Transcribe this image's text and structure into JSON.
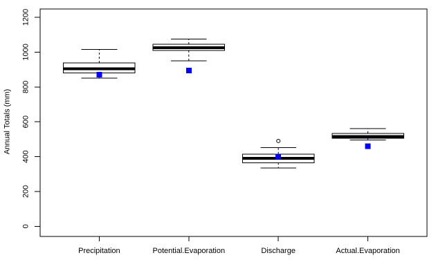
{
  "chart_data": {
    "type": "boxplot",
    "title": "",
    "xlabel": "",
    "ylabel": "Annual Totals (mm)",
    "ylim": [
      0,
      1200
    ],
    "yticks": [
      0,
      200,
      400,
      600,
      800,
      1000,
      1200
    ],
    "grid": false,
    "legend": "none",
    "categories": [
      "Precipitation",
      "Potential.Evaporation",
      "Discharge",
      "Actual.Evaporation"
    ],
    "box_style": {
      "fill": "#ffffff",
      "stroke": "#000000",
      "median_color": "#000000",
      "whisker_linestyle": "dashed"
    },
    "mean_marker": {
      "shape": "filled-square",
      "color": "#0000ff"
    },
    "series": [
      {
        "name": "Precipitation",
        "whisker_low": 850,
        "q1": 880,
        "median": 905,
        "q3": 938,
        "whisker_high": 1015,
        "mean": 870,
        "outliers": []
      },
      {
        "name": "Potential.Evaporation",
        "whisker_low": 950,
        "q1": 1010,
        "median": 1026,
        "q3": 1045,
        "whisker_high": 1074,
        "mean": 895,
        "outliers": []
      },
      {
        "name": "Discharge",
        "whisker_low": 335,
        "q1": 365,
        "median": 390,
        "q3": 415,
        "whisker_high": 452,
        "mean": 400,
        "outliers": [
          490
        ]
      },
      {
        "name": "Actual.Evaporation",
        "whisker_low": 495,
        "q1": 506,
        "median": 516,
        "q3": 534,
        "whisker_high": 560,
        "mean": 460,
        "outliers": []
      }
    ]
  }
}
